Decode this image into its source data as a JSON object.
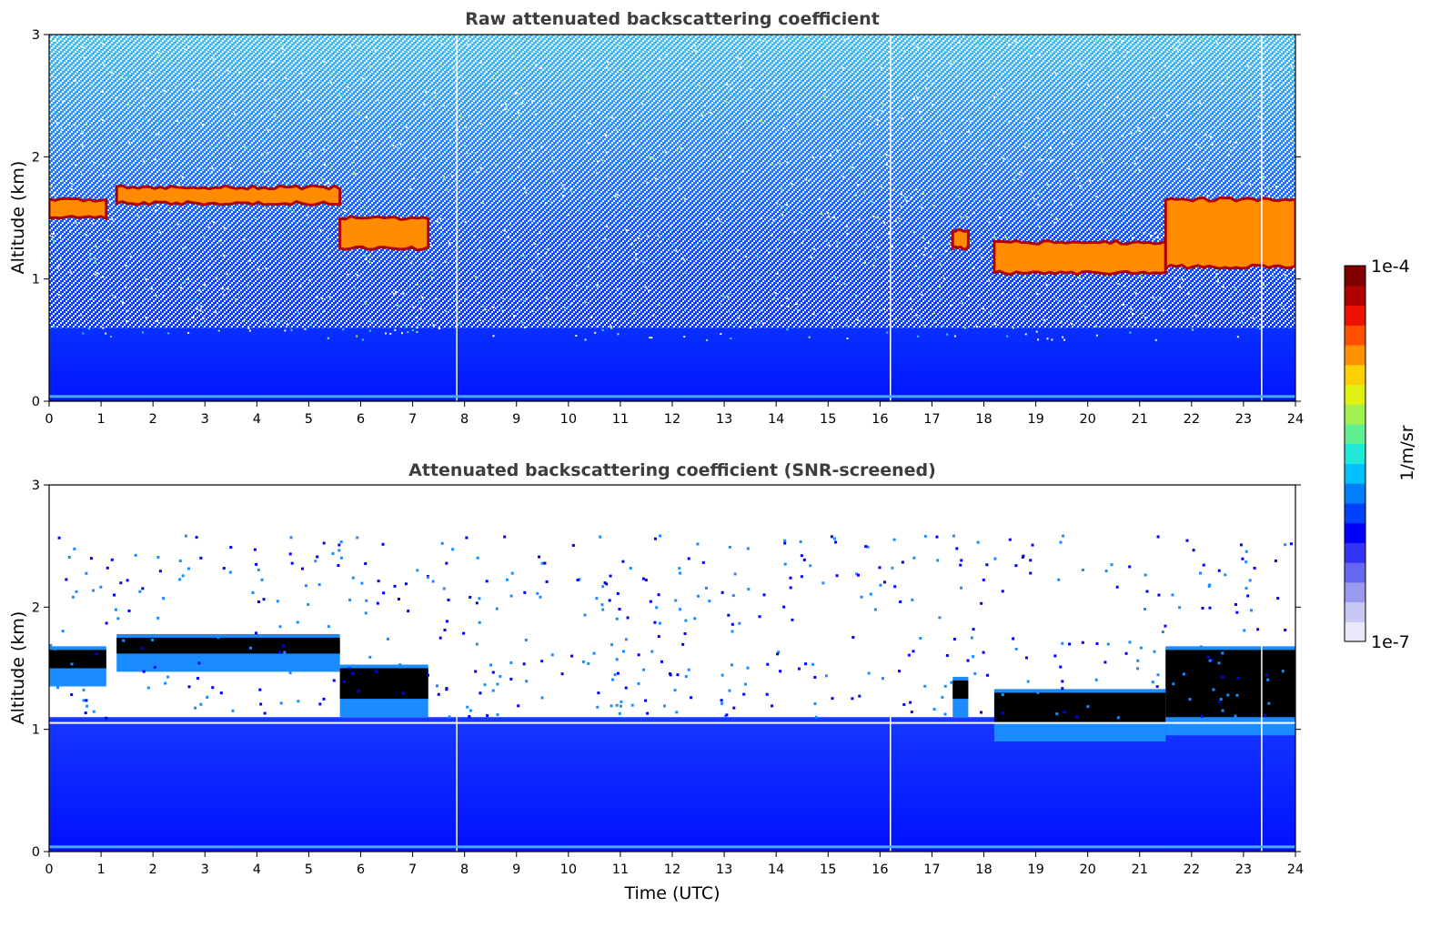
{
  "chart_data": [
    {
      "type": "heatmap",
      "title": "Raw attenuated backscattering coefficient",
      "xlabel": "",
      "ylabel": "Altitude (km)",
      "xlim": [
        0,
        24
      ],
      "ylim": [
        0,
        3
      ],
      "xticks": [
        "0",
        "1",
        "2",
        "3",
        "4",
        "5",
        "6",
        "7",
        "8",
        "9",
        "10",
        "11",
        "12",
        "13",
        "14",
        "15",
        "16",
        "17",
        "18",
        "19",
        "20",
        "21",
        "22",
        "23",
        "24"
      ],
      "yticks": [
        "0",
        "1",
        "2",
        "3"
      ],
      "colorscale": "jet, logarithmic",
      "cloud_layers": [
        {
          "start_hour": 0.0,
          "end_hour": 1.1,
          "altitude_km": [
            1.5,
            1.65
          ]
        },
        {
          "start_hour": 1.3,
          "end_hour": 5.6,
          "altitude_km": [
            1.62,
            1.75
          ]
        },
        {
          "start_hour": 5.6,
          "end_hour": 7.3,
          "altitude_km": [
            1.25,
            1.5
          ]
        },
        {
          "start_hour": 17.4,
          "end_hour": 17.7,
          "altitude_km": [
            1.25,
            1.4
          ]
        },
        {
          "start_hour": 18.2,
          "end_hour": 21.5,
          "altitude_km": [
            1.05,
            1.3
          ]
        },
        {
          "start_hour": 21.5,
          "end_hour": 24.0,
          "altitude_km": [
            1.1,
            1.65
          ]
        }
      ],
      "data_gaps_hours": [
        7.85,
        16.2,
        23.35
      ]
    },
    {
      "type": "heatmap",
      "title": "Attenuated backscattering coefficient (SNR-screened)",
      "xlabel": "Time (UTC)",
      "ylabel": "Altitude (km)",
      "xlim": [
        0,
        24
      ],
      "ylim": [
        0,
        3
      ],
      "xticks": [
        "0",
        "1",
        "2",
        "3",
        "4",
        "5",
        "6",
        "7",
        "8",
        "9",
        "10",
        "11",
        "12",
        "13",
        "14",
        "15",
        "16",
        "17",
        "18",
        "19",
        "20",
        "21",
        "22",
        "23",
        "24"
      ],
      "yticks": [
        "0",
        "1",
        "2",
        "3"
      ],
      "colorscale": "jet, logarithmic",
      "data_gaps_hours": [
        7.85,
        16.2,
        23.35
      ]
    }
  ],
  "colorbar": {
    "max_label": "1e-4",
    "min_label": "1e-7",
    "unit_label": "1/m/sr",
    "colors": [
      "#e8e8f8",
      "#c8c8f4",
      "#9999f0",
      "#6666f0",
      "#3333f8",
      "#0000ff",
      "#0040ff",
      "#0080ff",
      "#00c0ff",
      "#20e8d8",
      "#60f090",
      "#a0f050",
      "#e0f010",
      "#ffd000",
      "#ff9000",
      "#ff5000",
      "#ee1000",
      "#b00000",
      "#800000"
    ]
  }
}
